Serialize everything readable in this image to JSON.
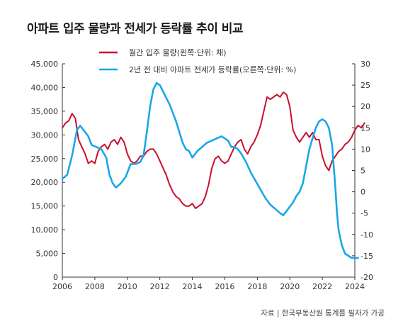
{
  "chart_data": {
    "type": "line",
    "title": "아파트 입주 물량과 전세가 등락률 추이 비교",
    "source": "자료 | 한국부동산원 통계를 필자가 가공",
    "xlim": [
      2006,
      2024
    ],
    "x_ticks": [
      "2006",
      "2008",
      "2010",
      "2012",
      "2014",
      "2016",
      "2018",
      "2020",
      "2022",
      "2024"
    ],
    "y_left": {
      "lim": [
        0,
        45000
      ],
      "ticks": [
        "0",
        "5,000",
        "10,000",
        "15,000",
        "20,000",
        "25,000",
        "30,000",
        "35,000",
        "40,000",
        "45,000"
      ]
    },
    "y_right": {
      "lim": [
        -20,
        30
      ],
      "ticks": [
        "-20",
        "-15",
        "-10",
        "-5",
        "0",
        "5",
        "10",
        "15",
        "20",
        "25",
        "30"
      ]
    },
    "legend_position": "top-center",
    "grid": false,
    "series": [
      {
        "name": "월간 입주 물량(왼쪽·단위: 채)",
        "axis": "left",
        "color": "#c8102e",
        "points": [
          [
            2006.0,
            31500
          ],
          [
            2006.2,
            32500
          ],
          [
            2006.4,
            33000
          ],
          [
            2006.6,
            34500
          ],
          [
            2006.8,
            33500
          ],
          [
            2007.0,
            29000
          ],
          [
            2007.2,
            27500
          ],
          [
            2007.4,
            26000
          ],
          [
            2007.6,
            24000
          ],
          [
            2007.8,
            24500
          ],
          [
            2008.0,
            24000
          ],
          [
            2008.2,
            26500
          ],
          [
            2008.4,
            27500
          ],
          [
            2008.6,
            28000
          ],
          [
            2008.8,
            27000
          ],
          [
            2009.0,
            28500
          ],
          [
            2009.2,
            29000
          ],
          [
            2009.4,
            28000
          ],
          [
            2009.6,
            29500
          ],
          [
            2009.8,
            28500
          ],
          [
            2010.0,
            26000
          ],
          [
            2010.2,
            24500
          ],
          [
            2010.4,
            24000
          ],
          [
            2010.6,
            24500
          ],
          [
            2010.8,
            25500
          ],
          [
            2011.0,
            25500
          ],
          [
            2011.2,
            26500
          ],
          [
            2011.4,
            27000
          ],
          [
            2011.6,
            27000
          ],
          [
            2011.8,
            26000
          ],
          [
            2012.0,
            24500
          ],
          [
            2012.2,
            23000
          ],
          [
            2012.4,
            21500
          ],
          [
            2012.6,
            19500
          ],
          [
            2012.8,
            18000
          ],
          [
            2013.0,
            17000
          ],
          [
            2013.2,
            16500
          ],
          [
            2013.4,
            15500
          ],
          [
            2013.6,
            15000
          ],
          [
            2013.8,
            15000
          ],
          [
            2014.0,
            15500
          ],
          [
            2014.2,
            14500
          ],
          [
            2014.4,
            15000
          ],
          [
            2014.6,
            15500
          ],
          [
            2014.8,
            17000
          ],
          [
            2015.0,
            19500
          ],
          [
            2015.2,
            23000
          ],
          [
            2015.4,
            25000
          ],
          [
            2015.6,
            25500
          ],
          [
            2015.8,
            24500
          ],
          [
            2016.0,
            24000
          ],
          [
            2016.2,
            24500
          ],
          [
            2016.4,
            26000
          ],
          [
            2016.6,
            27500
          ],
          [
            2016.8,
            28500
          ],
          [
            2017.0,
            29000
          ],
          [
            2017.2,
            27000
          ],
          [
            2017.4,
            26000
          ],
          [
            2017.6,
            27500
          ],
          [
            2017.8,
            28500
          ],
          [
            2018.0,
            30000
          ],
          [
            2018.2,
            32000
          ],
          [
            2018.4,
            35000
          ],
          [
            2018.6,
            38000
          ],
          [
            2018.8,
            37500
          ],
          [
            2019.0,
            38000
          ],
          [
            2019.2,
            38500
          ],
          [
            2019.4,
            38000
          ],
          [
            2019.6,
            39000
          ],
          [
            2019.8,
            38500
          ],
          [
            2020.0,
            36000
          ],
          [
            2020.2,
            31000
          ],
          [
            2020.4,
            29500
          ],
          [
            2020.6,
            28500
          ],
          [
            2020.8,
            29500
          ],
          [
            2021.0,
            30500
          ],
          [
            2021.2,
            29500
          ],
          [
            2021.4,
            30500
          ],
          [
            2021.6,
            29000
          ],
          [
            2021.8,
            29000
          ],
          [
            2022.0,
            25500
          ],
          [
            2022.2,
            23500
          ],
          [
            2022.4,
            22500
          ],
          [
            2022.6,
            24500
          ],
          [
            2022.8,
            25500
          ],
          [
            2023.0,
            26500
          ],
          [
            2023.2,
            27000
          ],
          [
            2023.4,
            28000
          ],
          [
            2023.6,
            28500
          ],
          [
            2023.8,
            29500
          ],
          [
            2024.0,
            31000
          ],
          [
            2024.2,
            32000
          ],
          [
            2024.4,
            31500
          ],
          [
            2024.6,
            32500
          ]
        ]
      },
      {
        "name": "2년 전 대비 아파트 전세가 등락률(오른쪽·단위: %)",
        "axis": "right",
        "color": "#1aa7e6",
        "points": [
          [
            2006.0,
            3.0
          ],
          [
            2006.3,
            4.0
          ],
          [
            2006.6,
            8.5
          ],
          [
            2006.9,
            14.5
          ],
          [
            2007.1,
            15.5
          ],
          [
            2007.3,
            14.5
          ],
          [
            2007.6,
            13.0
          ],
          [
            2007.8,
            11.0
          ],
          [
            2008.1,
            10.5
          ],
          [
            2008.4,
            10.0
          ],
          [
            2008.7,
            8.0
          ],
          [
            2008.9,
            4.0
          ],
          [
            2009.1,
            2.0
          ],
          [
            2009.3,
            1.0
          ],
          [
            2009.6,
            2.0
          ],
          [
            2009.9,
            3.5
          ],
          [
            2010.2,
            6.5
          ],
          [
            2010.5,
            6.5
          ],
          [
            2010.8,
            7.0
          ],
          [
            2011.0,
            8.5
          ],
          [
            2011.2,
            14.0
          ],
          [
            2011.4,
            20.0
          ],
          [
            2011.6,
            24.0
          ],
          [
            2011.8,
            25.5
          ],
          [
            2012.0,
            25.0
          ],
          [
            2012.2,
            23.5
          ],
          [
            2012.4,
            22.0
          ],
          [
            2012.6,
            20.5
          ],
          [
            2012.8,
            18.5
          ],
          [
            2013.0,
            16.5
          ],
          [
            2013.2,
            14.0
          ],
          [
            2013.4,
            11.5
          ],
          [
            2013.6,
            10.0
          ],
          [
            2013.8,
            9.5
          ],
          [
            2014.0,
            8.0
          ],
          [
            2014.3,
            9.5
          ],
          [
            2014.6,
            10.5
          ],
          [
            2014.9,
            11.5
          ],
          [
            2015.2,
            12.0
          ],
          [
            2015.5,
            12.5
          ],
          [
            2015.8,
            13.0
          ],
          [
            2016.0,
            12.5
          ],
          [
            2016.2,
            12.0
          ],
          [
            2016.4,
            10.5
          ],
          [
            2016.6,
            10.5
          ],
          [
            2016.8,
            10.0
          ],
          [
            2017.0,
            9.0
          ],
          [
            2017.3,
            7.0
          ],
          [
            2017.6,
            4.5
          ],
          [
            2017.9,
            2.5
          ],
          [
            2018.2,
            0.5
          ],
          [
            2018.5,
            -1.5
          ],
          [
            2018.8,
            -3.0
          ],
          [
            2019.1,
            -4.0
          ],
          [
            2019.4,
            -5.0
          ],
          [
            2019.6,
            -5.5
          ],
          [
            2019.8,
            -4.5
          ],
          [
            2020.0,
            -3.5
          ],
          [
            2020.2,
            -2.5
          ],
          [
            2020.4,
            -1.0
          ],
          [
            2020.6,
            0.0
          ],
          [
            2020.8,
            2.0
          ],
          [
            2021.0,
            6.0
          ],
          [
            2021.2,
            10.0
          ],
          [
            2021.4,
            12.5
          ],
          [
            2021.6,
            15.0
          ],
          [
            2021.8,
            16.5
          ],
          [
            2022.0,
            17.0
          ],
          [
            2022.2,
            16.5
          ],
          [
            2022.4,
            15.0
          ],
          [
            2022.6,
            11.0
          ],
          [
            2022.8,
            1.0
          ],
          [
            2022.9,
            -5.0
          ],
          [
            2023.0,
            -9.0
          ],
          [
            2023.2,
            -12.5
          ],
          [
            2023.4,
            -14.5
          ],
          [
            2023.6,
            -15.0
          ],
          [
            2023.8,
            -15.5
          ],
          [
            2024.0,
            -15.5
          ],
          [
            2024.2,
            -15.5
          ]
        ]
      }
    ]
  }
}
